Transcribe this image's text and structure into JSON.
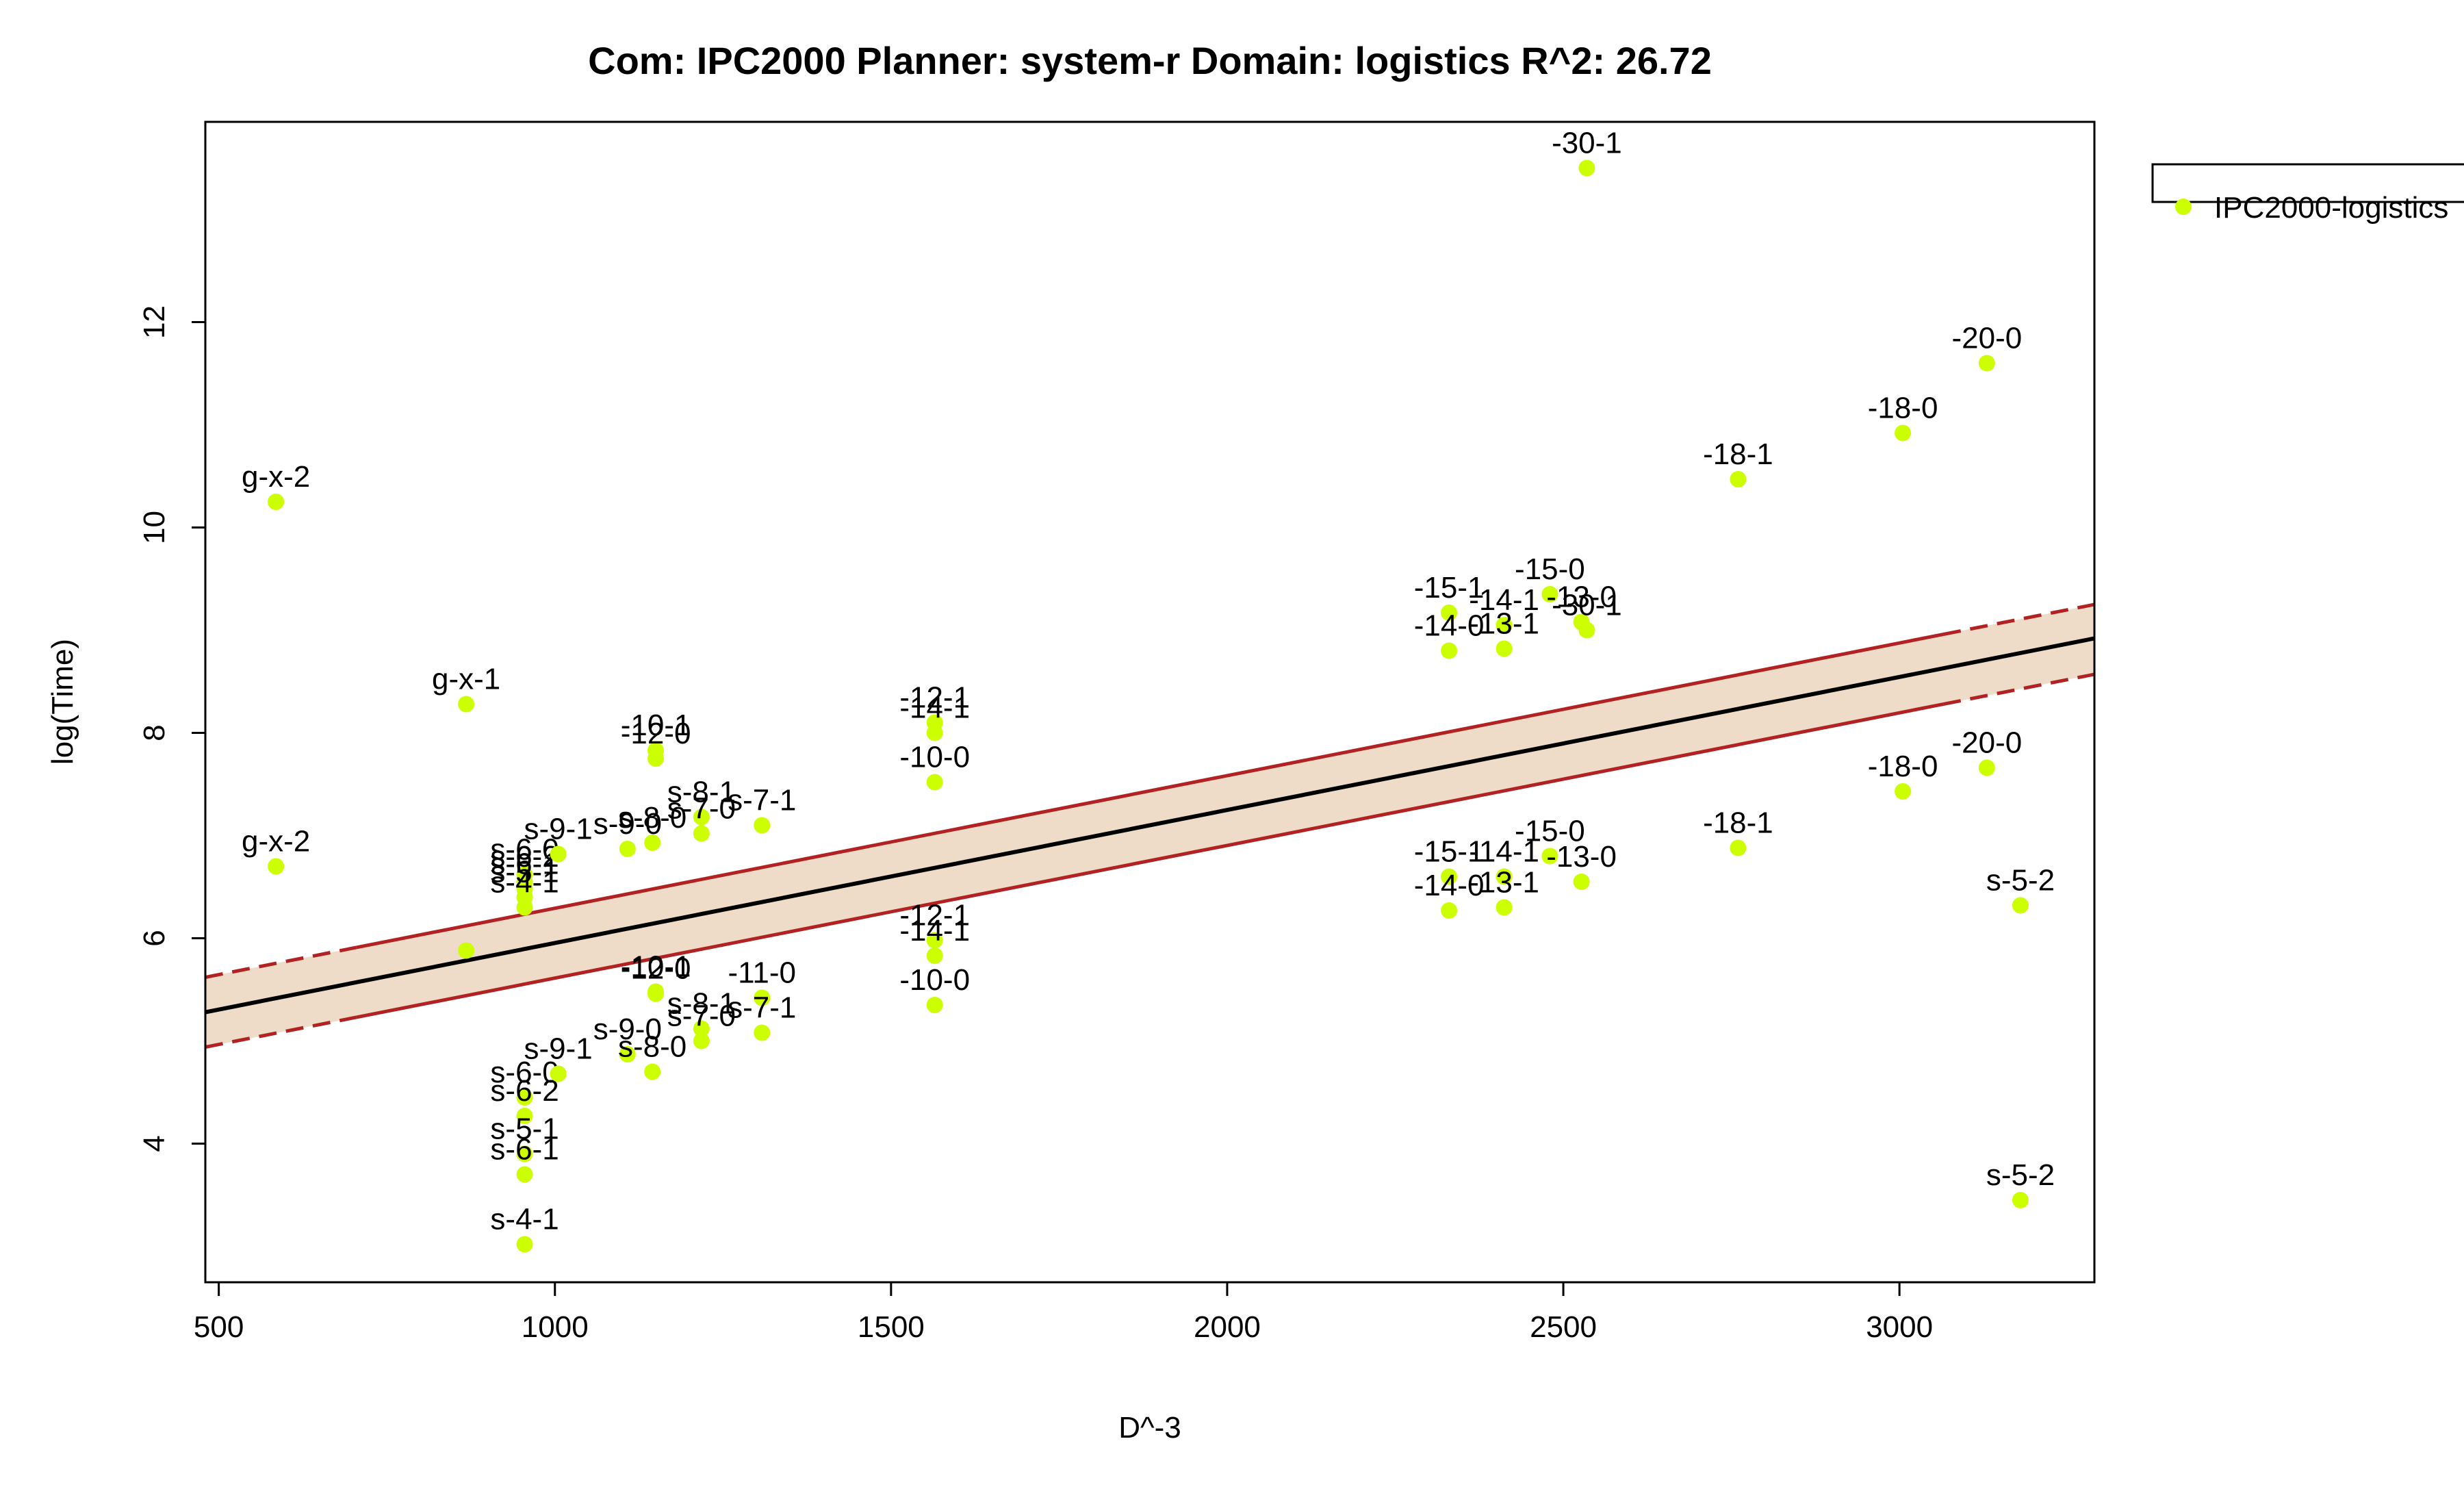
{
  "chart_data": {
    "type": "scatter",
    "title": "Com: IPC2000 Planner: system-r Domain: logistics R^2: 26.72",
    "xlabel": "D^-3",
    "ylabel": "log(Time)",
    "xlim": [
      480,
      3290
    ],
    "ylim": [
      2.65,
      13.95
    ],
    "xticks": [
      500,
      1000,
      1500,
      2000,
      2500,
      3000
    ],
    "yticks": [
      4,
      6,
      8,
      10,
      12
    ],
    "grid": false,
    "legend_position": "top-right-outside",
    "point_color": "#ccff00",
    "band_fill": "#eedcc8",
    "band_edge_color": "#b22222",
    "fit_color": "#000000",
    "fit": {
      "x": [
        480,
        3290
      ],
      "y": [
        5.28,
        8.92
      ]
    },
    "band_upper": {
      "x": [
        480,
        3290
      ],
      "y": [
        5.62,
        9.25
      ]
    },
    "band_lower": {
      "x": [
        480,
        3290
      ],
      "y": [
        4.94,
        8.57
      ]
    },
    "series": [
      {
        "name": "IPC2000-logistics",
        "points": [
          {
            "x": 585,
            "y": 10.25,
            "label": "g-x-2"
          },
          {
            "x": 585,
            "y": 6.7,
            "label": "g-x-2"
          },
          {
            "x": 868,
            "y": 8.28,
            "label": "g-x-1"
          },
          {
            "x": 868,
            "y": 5.88,
            "label": ""
          },
          {
            "x": 955,
            "y": 6.62,
            "label": "s-6-0"
          },
          {
            "x": 955,
            "y": 6.55,
            "label": "s-6-2"
          },
          {
            "x": 955,
            "y": 6.48,
            "label": "s-6-1"
          },
          {
            "x": 955,
            "y": 6.4,
            "label": "s-5-1"
          },
          {
            "x": 955,
            "y": 6.3,
            "label": "s-4-1"
          },
          {
            "x": 955,
            "y": 4.45,
            "label": "s-6-0"
          },
          {
            "x": 955,
            "y": 4.27,
            "label": "s-6-2"
          },
          {
            "x": 955,
            "y": 3.9,
            "label": "s-5-1"
          },
          {
            "x": 955,
            "y": 3.7,
            "label": "s-6-1"
          },
          {
            "x": 955,
            "y": 3.02,
            "label": "s-4-1"
          },
          {
            "x": 1005,
            "y": 6.82,
            "label": "s-9-1"
          },
          {
            "x": 1005,
            "y": 4.68,
            "label": "s-9-1"
          },
          {
            "x": 1108,
            "y": 6.87,
            "label": "s-9-0"
          },
          {
            "x": 1108,
            "y": 4.87,
            "label": "s-9-0"
          },
          {
            "x": 1145,
            "y": 6.93,
            "label": "s-8-0"
          },
          {
            "x": 1145,
            "y": 4.7,
            "label": "s-8-0"
          },
          {
            "x": 1150,
            "y": 7.83,
            "label": "-10-1"
          },
          {
            "x": 1150,
            "y": 7.75,
            "label": "-12-0"
          },
          {
            "x": 1150,
            "y": 5.48,
            "label": "-10-1"
          },
          {
            "x": 1150,
            "y": 5.46,
            "label": "-12-0"
          },
          {
            "x": 1218,
            "y": 7.18,
            "label": "s-8-1"
          },
          {
            "x": 1218,
            "y": 7.02,
            "label": "s-7-0"
          },
          {
            "x": 1218,
            "y": 5.12,
            "label": "s-8-1"
          },
          {
            "x": 1218,
            "y": 5.0,
            "label": "s-7-0"
          },
          {
            "x": 1308,
            "y": 7.1,
            "label": "s-7-1"
          },
          {
            "x": 1308,
            "y": 5.42,
            "label": "-11-0"
          },
          {
            "x": 1308,
            "y": 5.08,
            "label": "s-7-1"
          },
          {
            "x": 1565,
            "y": 8.1,
            "label": "-12-1"
          },
          {
            "x": 1565,
            "y": 8.0,
            "label": "-14-1"
          },
          {
            "x": 1565,
            "y": 7.52,
            "label": "-10-0"
          },
          {
            "x": 1565,
            "y": 5.98,
            "label": "-12-1"
          },
          {
            "x": 1565,
            "y": 5.83,
            "label": "-14-1"
          },
          {
            "x": 1565,
            "y": 5.35,
            "label": "-10-0"
          },
          {
            "x": 2330,
            "y": 9.17,
            "label": "-15-1"
          },
          {
            "x": 2330,
            "y": 8.8,
            "label": "-14-0"
          },
          {
            "x": 2330,
            "y": 6.6,
            "label": "-15-1"
          },
          {
            "x": 2330,
            "y": 6.27,
            "label": "-14-0"
          },
          {
            "x": 2412,
            "y": 9.05,
            "label": "-14-1"
          },
          {
            "x": 2412,
            "y": 8.82,
            "label": "-13-1"
          },
          {
            "x": 2412,
            "y": 6.6,
            "label": "-14-1"
          },
          {
            "x": 2412,
            "y": 6.3,
            "label": "-13-1"
          },
          {
            "x": 2480,
            "y": 9.35,
            "label": "-15-0"
          },
          {
            "x": 2480,
            "y": 6.8,
            "label": "-15-0"
          },
          {
            "x": 2527,
            "y": 9.08,
            "label": "-13-0"
          },
          {
            "x": 2527,
            "y": 6.55,
            "label": "-13-0"
          },
          {
            "x": 2535,
            "y": 9.0,
            "label": "-30-1"
          },
          {
            "x": 2535,
            "y": 13.5,
            "label": "-30-1"
          },
          {
            "x": 2760,
            "y": 10.47,
            "label": "-18-1"
          },
          {
            "x": 2760,
            "y": 6.88,
            "label": "-18-1"
          },
          {
            "x": 3005,
            "y": 10.92,
            "label": "-18-0"
          },
          {
            "x": 3005,
            "y": 7.43,
            "label": "-18-0"
          },
          {
            "x": 3130,
            "y": 11.6,
            "label": "-20-0"
          },
          {
            "x": 3130,
            "y": 7.66,
            "label": "-20-0"
          },
          {
            "x": 3180,
            "y": 6.32,
            "label": "s-5-2"
          },
          {
            "x": 3180,
            "y": 3.45,
            "label": "s-5-2"
          }
        ]
      }
    ]
  }
}
